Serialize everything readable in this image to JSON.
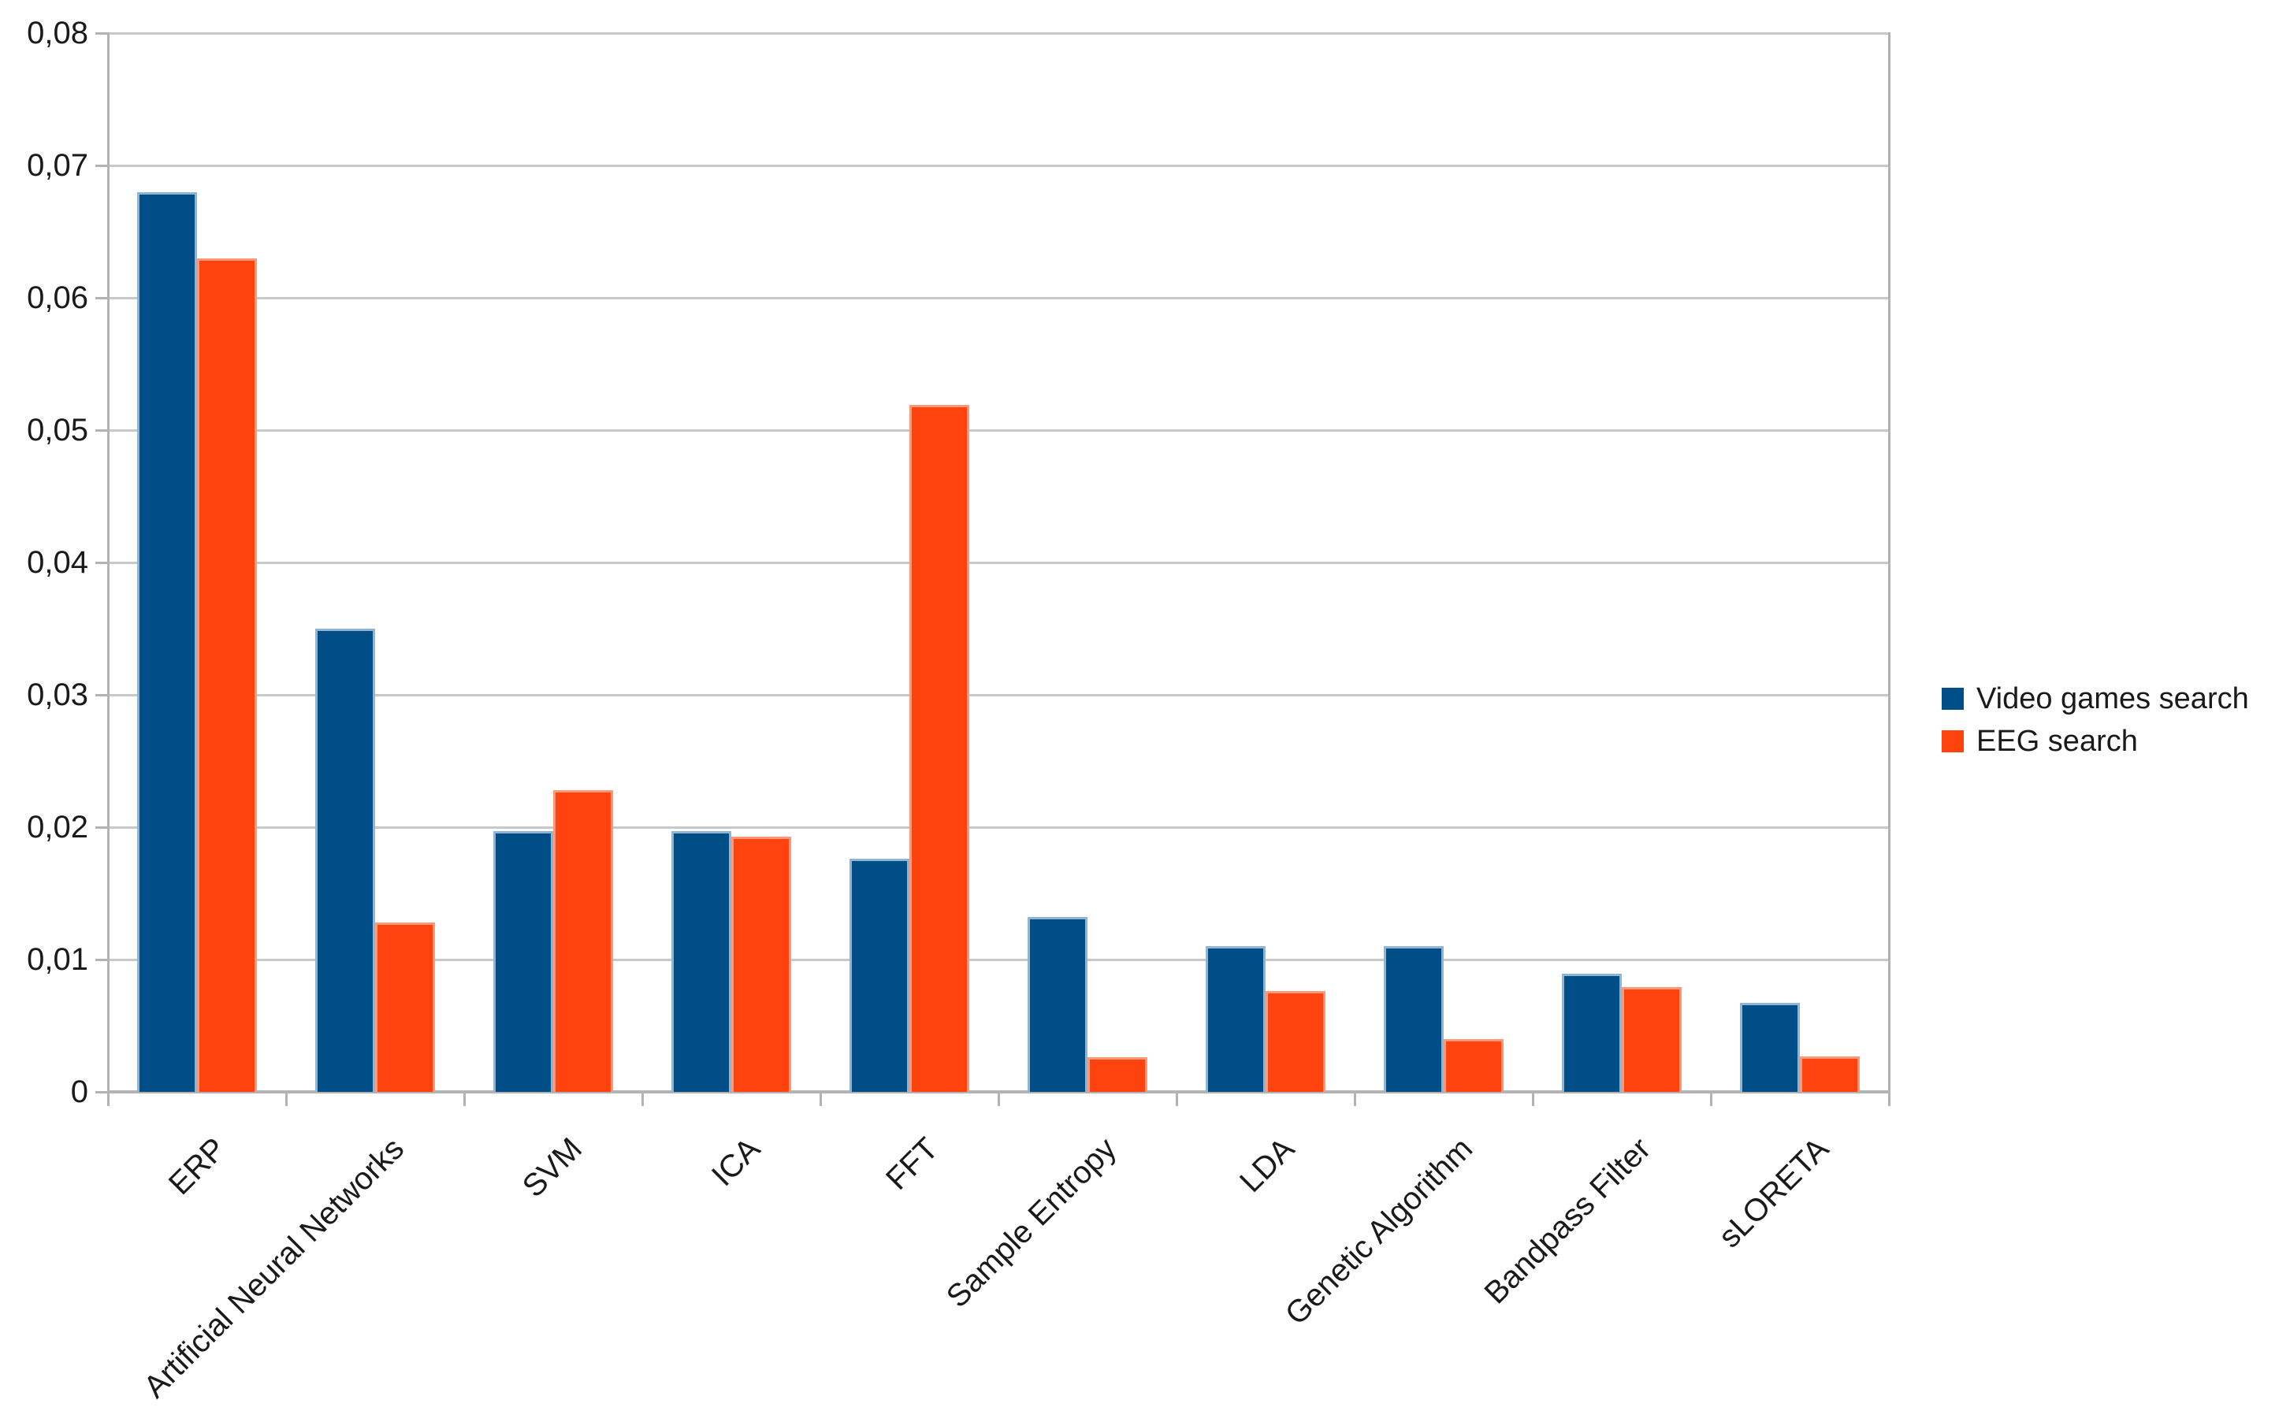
{
  "chart_data": {
    "type": "bar",
    "title": "",
    "xlabel": "",
    "ylabel": "",
    "categories": [
      "ERP",
      "Artificial Neural Networks",
      "SVM",
      "ICA",
      "FFT",
      "Sample Entropy",
      "LDA",
      "Genetic Algorithm",
      "Bandpass Filter",
      "sLORETA"
    ],
    "series": [
      {
        "name": "Video games search",
        "color": "#004E87",
        "edge_color": "#8FB4D4",
        "values": [
          0.068,
          0.035,
          0.0197,
          0.0197,
          0.0176,
          0.0132,
          0.011,
          0.011,
          0.0089,
          0.0067
        ]
      },
      {
        "name": "EEG search",
        "color": "#FF430F",
        "edge_color": "#FF9877",
        "values": [
          0.063,
          0.0128,
          0.0228,
          0.0193,
          0.0519,
          0.0026,
          0.0076,
          0.004,
          0.0079,
          0.0027
        ]
      }
    ],
    "ylim": [
      0,
      0.08
    ],
    "ytick_step": 0.01,
    "ytick_labels": [
      "0",
      "0,01",
      "0,02",
      "0,03",
      "0,04",
      "0,05",
      "0,06",
      "0,07",
      "0,08"
    ],
    "decimal_separator": ",",
    "grid": true,
    "legend_position": "right",
    "grid_color": "#c8c8c8",
    "axis_color": "#b3b3b3",
    "text_color": "#1a1a1a"
  }
}
